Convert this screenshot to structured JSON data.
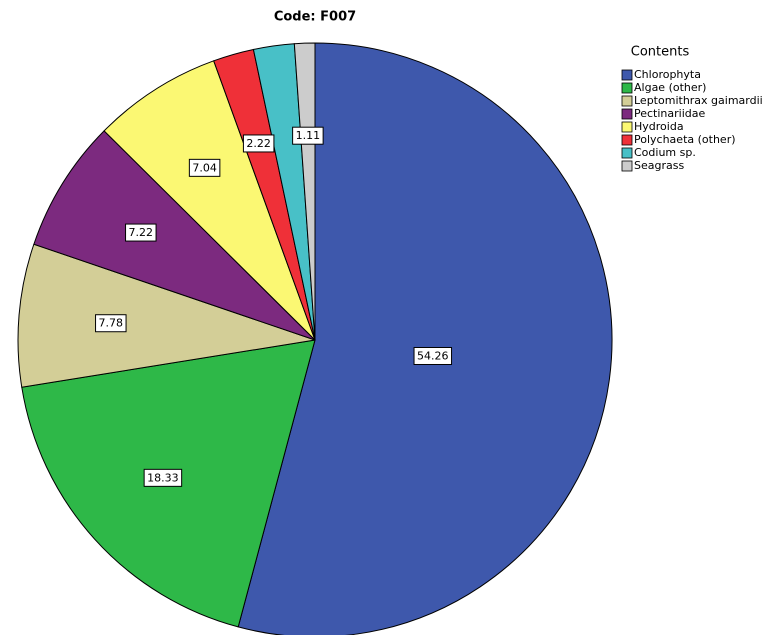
{
  "chart_data": {
    "type": "pie",
    "title": "Code: F007",
    "legend_title": "Contents",
    "categories": [
      "Chlorophyta",
      "Algae (other)",
      "Leptomithrax gaimardii",
      "Pectinariidae",
      "Hydroida",
      "Polychaeta (other)",
      "Codium sp.",
      "Seagrass"
    ],
    "values": [
      54.26,
      18.33,
      7.78,
      7.22,
      7.04,
      2.22,
      2.22,
      1.11
    ],
    "value_labels": [
      "54.26",
      "18.33",
      "7.78",
      "7.22",
      "7.04",
      "2.22",
      null,
      "1.11"
    ],
    "colors": [
      "#3e58ac",
      "#2eb848",
      "#d3ce97",
      "#7c2a7f",
      "#fbf873",
      "#ef3038",
      "#48c0c7",
      "#cccccc"
    ],
    "legend": "top-right"
  }
}
